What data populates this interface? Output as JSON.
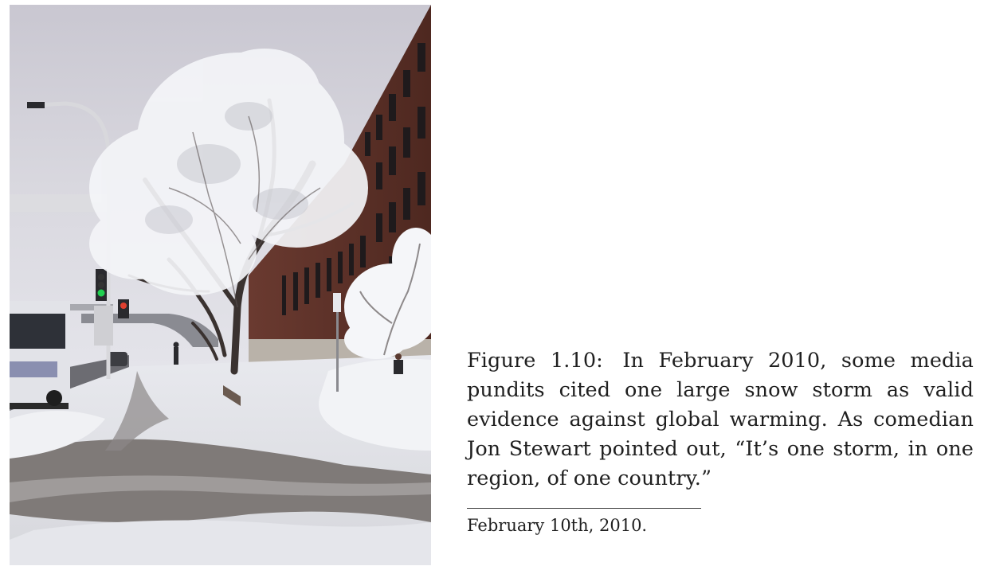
{
  "figure": {
    "label": "Figure 1.10:",
    "caption": "In February 2010, some media pundits cited one large snow storm as valid evidence against global warming. As comedian Jon Stewart pointed out, “It’s one storm, in one region, of one country.”"
  },
  "footnote": {
    "text": "February 10th, 2010."
  }
}
